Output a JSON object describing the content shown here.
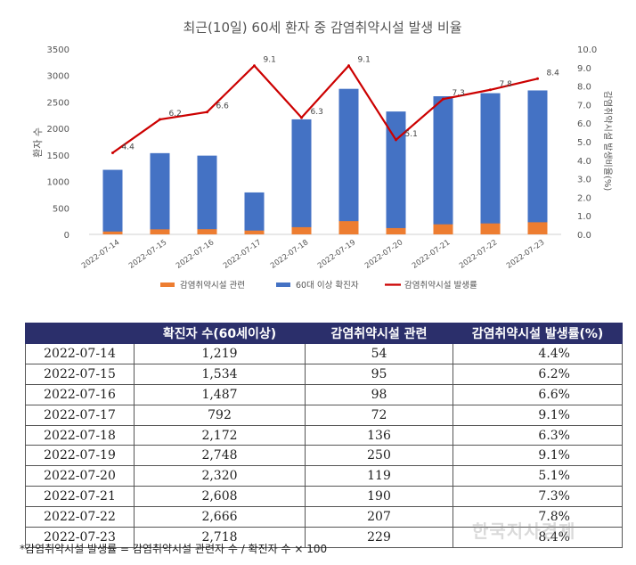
{
  "chart_data": {
    "type": "bar+line",
    "title": "최근(10일) 60세 환자 중 감염취약시설 발생 비율",
    "categories": [
      "2022-07-14",
      "2022-07-15",
      "2022-07-16",
      "2022-07-17",
      "2022-07-18",
      "2022-07-19",
      "2022-07-20",
      "2022-07-21",
      "2022-07-22",
      "2022-07-23"
    ],
    "series": [
      {
        "name": "감염취약시설 관련",
        "type": "bar",
        "axis": "left",
        "color": "#ed7d31",
        "values": [
          54,
          95,
          98,
          72,
          136,
          250,
          119,
          190,
          207,
          229
        ]
      },
      {
        "name": "60대 이상 확진자",
        "type": "bar",
        "axis": "left",
        "color": "#4472c4",
        "values": [
          1219,
          1534,
          1487,
          792,
          2172,
          2748,
          2320,
          2608,
          2666,
          2718
        ]
      },
      {
        "name": "감염취약시설 발생률",
        "type": "line",
        "axis": "right",
        "color": "#cc0000",
        "values": [
          4.4,
          6.2,
          6.6,
          9.1,
          6.3,
          9.1,
          5.1,
          7.3,
          7.8,
          8.4
        ],
        "labels": [
          "4.4",
          "6.2",
          "6.6",
          "9.1",
          "6.3",
          "9.1",
          "5.1",
          "7.3",
          "7.8",
          "8.4"
        ]
      }
    ],
    "ylabel": "환자 수",
    "y2label": "감염취약시설 발생비율(%)",
    "ylim": [
      0,
      3500
    ],
    "y2lim": [
      0,
      10
    ],
    "yticks": [
      "0",
      "500",
      "1000",
      "1500",
      "2000",
      "2500",
      "3000",
      "3500"
    ],
    "y2ticks": [
      "0.0",
      "1.0",
      "2.0",
      "3.0",
      "4.0",
      "5.0",
      "6.0",
      "7.0",
      "8.0",
      "9.0",
      "10.0"
    ],
    "grid": false,
    "legend": "bottom"
  },
  "table": {
    "headers": [
      "",
      "확진자 수(60세이상)",
      "감염취약시설 관련",
      "감염취약시설 발생률(%)"
    ],
    "rows": [
      [
        "2022-07-14",
        "1,219",
        "54",
        "4.4%"
      ],
      [
        "2022-07-15",
        "1,534",
        "95",
        "6.2%"
      ],
      [
        "2022-07-16",
        "1,487",
        "98",
        "6.6%"
      ],
      [
        "2022-07-17",
        "792",
        "72",
        "9.1%"
      ],
      [
        "2022-07-18",
        "2,172",
        "136",
        "6.3%"
      ],
      [
        "2022-07-19",
        "2,748",
        "250",
        "9.1%"
      ],
      [
        "2022-07-20",
        "2,320",
        "119",
        "5.1%"
      ],
      [
        "2022-07-21",
        "2,608",
        "190",
        "7.3%"
      ],
      [
        "2022-07-22",
        "2,666",
        "207",
        "7.8%"
      ],
      [
        "2022-07-23",
        "2,718",
        "229",
        "8.4%"
      ]
    ]
  },
  "footnote": "*감염취약시설 발생률 = 감염취약시설 관련자 수 / 확진자 수 × 100",
  "watermark": "한국지사경제"
}
